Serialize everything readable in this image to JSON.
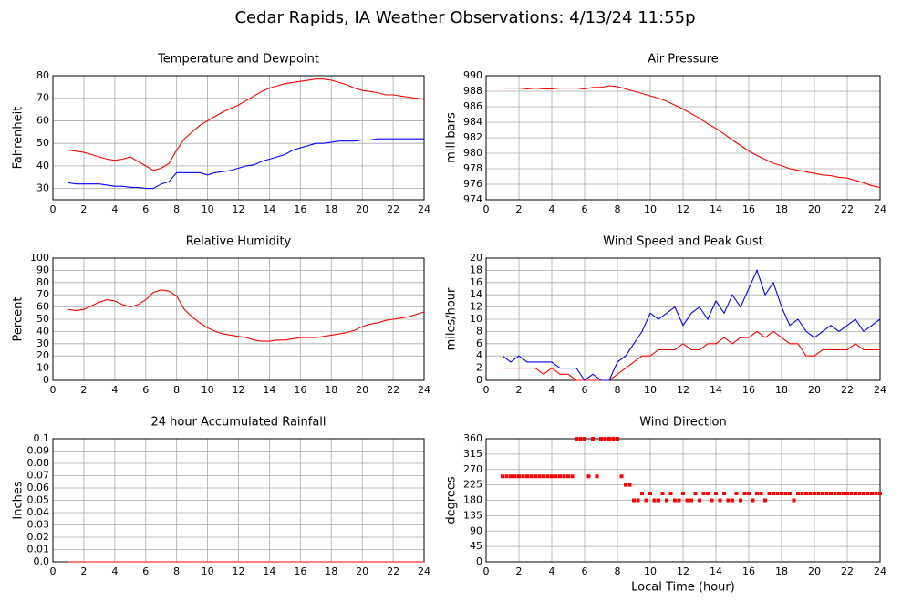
{
  "title": "Cedar Rapids, IA Weather Observations: 4/13/24 11:55p",
  "chart_data": [
    {
      "type": "line",
      "title": "Temperature and Dewpoint",
      "ylabel": "Fahrenheit",
      "x": [
        1,
        1.5,
        2,
        2.5,
        3,
        3.5,
        4,
        4.5,
        5,
        5.5,
        6,
        6.5,
        7,
        7.5,
        8,
        8.5,
        9,
        9.5,
        10,
        10.5,
        11,
        11.5,
        12,
        12.5,
        13,
        13.5,
        14,
        14.5,
        15,
        15.5,
        16,
        16.5,
        17,
        17.5,
        18,
        18.5,
        19,
        19.5,
        20,
        20.5,
        21,
        21.5,
        22,
        22.5,
        23,
        23.5,
        24
      ],
      "series": [
        {
          "color": "#ff0000",
          "values": [
            47,
            46.5,
            46,
            45,
            44,
            43,
            42.5,
            43,
            44,
            42,
            40,
            38,
            39,
            41,
            47,
            52,
            55,
            58,
            60,
            62,
            64,
            65.5,
            67,
            69,
            71,
            73,
            74.5,
            75.5,
            76.5,
            77,
            77.5,
            78,
            78.5,
            78.5,
            78,
            77,
            76,
            74.5,
            73.5,
            73,
            72.5,
            71.5,
            71.5,
            71,
            70.5,
            70,
            69.5
          ]
        },
        {
          "color": "#0000ff",
          "values": [
            32.5,
            32,
            32,
            32,
            32,
            31.5,
            31,
            31,
            30.5,
            30.5,
            30,
            30,
            32,
            33,
            37,
            37,
            37,
            37,
            36,
            37,
            37.5,
            38,
            39,
            40,
            40.5,
            42,
            43,
            44,
            45,
            47,
            48,
            49,
            50,
            50,
            50.5,
            51,
            51,
            51,
            51.5,
            51.5,
            52,
            52,
            52,
            52,
            52,
            52,
            52
          ]
        }
      ],
      "xlim": [
        0,
        24
      ],
      "xticks": [
        0,
        2,
        4,
        6,
        8,
        10,
        12,
        14,
        16,
        18,
        20,
        22,
        24
      ],
      "ylim": [
        25,
        80
      ],
      "yticks": [
        30,
        40,
        50,
        60,
        70,
        80
      ],
      "grid": true
    },
    {
      "type": "line",
      "title": "Air Pressure",
      "ylabel": "millibars",
      "x": [
        1,
        1.5,
        2,
        2.5,
        3,
        3.5,
        4,
        4.5,
        5,
        5.5,
        6,
        6.5,
        7,
        7.5,
        8,
        8.5,
        9,
        9.5,
        10,
        10.5,
        11,
        11.5,
        12,
        12.5,
        13,
        13.5,
        14,
        14.5,
        15,
        15.5,
        16,
        16.5,
        17,
        17.5,
        18,
        18.5,
        19,
        19.5,
        20,
        20.5,
        21,
        21.5,
        22,
        22.5,
        23,
        23.5,
        24
      ],
      "series": [
        {
          "color": "#ff0000",
          "values": [
            988.4,
            988.4,
            988.4,
            988.3,
            988.4,
            988.3,
            988.3,
            988.4,
            988.4,
            988.4,
            988.3,
            988.5,
            988.5,
            988.7,
            988.6,
            988.3,
            988.0,
            987.7,
            987.4,
            987.1,
            986.7,
            986.2,
            985.7,
            985.1,
            984.5,
            983.8,
            983.2,
            982.5,
            981.7,
            981.0,
            980.3,
            979.7,
            979.2,
            978.7,
            978.4,
            978.0,
            977.8,
            977.6,
            977.4,
            977.2,
            977.1,
            976.9,
            976.8,
            976.5,
            976.2,
            975.8,
            975.6
          ]
        }
      ],
      "xlim": [
        0,
        24
      ],
      "xticks": [
        0,
        2,
        4,
        6,
        8,
        10,
        12,
        14,
        16,
        18,
        20,
        22,
        24
      ],
      "ylim": [
        974,
        990
      ],
      "yticks": [
        974,
        976,
        978,
        980,
        982,
        984,
        986,
        988,
        990
      ],
      "grid": true
    },
    {
      "type": "line",
      "title": "Relative Humidity",
      "ylabel": "Percent",
      "x": [
        1,
        1.5,
        2,
        2.5,
        3,
        3.5,
        4,
        4.5,
        5,
        5.5,
        6,
        6.5,
        7,
        7.5,
        8,
        8.5,
        9,
        9.5,
        10,
        10.5,
        11,
        11.5,
        12,
        12.5,
        13,
        13.5,
        14,
        14.5,
        15,
        15.5,
        16,
        16.5,
        17,
        17.5,
        18,
        18.5,
        19,
        19.5,
        20,
        20.5,
        21,
        21.5,
        22,
        22.5,
        23,
        23.5,
        24
      ],
      "series": [
        {
          "color": "#ff0000",
          "values": [
            58,
            57,
            58,
            61,
            64,
            66,
            65,
            62,
            60,
            62,
            66,
            72,
            74,
            73,
            69,
            58,
            52,
            47,
            43,
            40,
            38,
            37,
            36,
            35,
            33,
            32,
            32,
            33,
            33,
            34,
            35,
            35,
            35,
            36,
            37,
            38,
            39,
            41,
            44,
            46,
            47,
            49,
            50,
            51,
            52,
            54,
            56
          ]
        }
      ],
      "xlim": [
        0,
        24
      ],
      "xticks": [
        0,
        2,
        4,
        6,
        8,
        10,
        12,
        14,
        16,
        18,
        20,
        22,
        24
      ],
      "ylim": [
        0,
        100
      ],
      "yticks": [
        0,
        10,
        20,
        30,
        40,
        50,
        60,
        70,
        80,
        90,
        100
      ],
      "grid": true
    },
    {
      "type": "line",
      "title": "Wind Speed and Peak Gust",
      "ylabel": "miles/hour",
      "x": [
        1,
        1.5,
        2,
        2.5,
        3,
        3.5,
        4,
        4.5,
        5,
        5.5,
        6,
        6.5,
        7,
        7.5,
        8,
        8.5,
        9,
        9.5,
        10,
        10.5,
        11,
        11.5,
        12,
        12.5,
        13,
        13.5,
        14,
        14.5,
        15,
        15.5,
        16,
        16.5,
        17,
        17.5,
        18,
        18.5,
        19,
        19.5,
        20,
        20.5,
        21,
        21.5,
        22,
        22.5,
        23,
        23.5,
        24
      ],
      "series": [
        {
          "color": "#ff0000",
          "values": [
            2,
            2,
            2,
            2,
            2,
            1,
            2,
            1,
            1,
            0,
            0,
            0,
            0,
            0,
            1,
            2,
            3,
            4,
            4,
            5,
            5,
            5,
            6,
            5,
            5,
            6,
            6,
            7,
            6,
            7,
            7,
            8,
            7,
            8,
            7,
            6,
            6,
            4,
            4,
            5,
            5,
            5,
            5,
            6,
            5,
            5,
            5
          ]
        },
        {
          "color": "#0000ff",
          "values": [
            4,
            3,
            4,
            3,
            3,
            3,
            3,
            2,
            2,
            2,
            0,
            1,
            0,
            0,
            3,
            4,
            6,
            8,
            11,
            10,
            11,
            12,
            9,
            11,
            12,
            10,
            13,
            11,
            14,
            12,
            15,
            18,
            14,
            16,
            12,
            9,
            10,
            8,
            7,
            8,
            9,
            8,
            9,
            10,
            8,
            9,
            10
          ]
        }
      ],
      "xlim": [
        0,
        24
      ],
      "xticks": [
        0,
        2,
        4,
        6,
        8,
        10,
        12,
        14,
        16,
        18,
        20,
        22,
        24
      ],
      "ylim": [
        0,
        20
      ],
      "yticks": [
        0,
        2,
        4,
        6,
        8,
        10,
        12,
        14,
        16,
        18,
        20
      ],
      "grid": true
    },
    {
      "type": "line",
      "title": "24 hour Accumulated Rainfall",
      "ylabel": "Inches",
      "x": [
        1,
        24
      ],
      "series": [
        {
          "color": "#ff0000",
          "values": [
            0,
            0
          ]
        }
      ],
      "xlim": [
        0,
        24
      ],
      "xticks": [
        0,
        2,
        4,
        6,
        8,
        10,
        12,
        14,
        16,
        18,
        20,
        22,
        24
      ],
      "ylim": [
        0,
        0.1
      ],
      "yticks": [
        {
          "value": 0,
          "label": "0.0"
        },
        0.01,
        0.02,
        0.03,
        0.04,
        0.05,
        0.06,
        0.07,
        0.08,
        0.09,
        0.1
      ],
      "grid": true
    },
    {
      "type": "scatter",
      "title": "Wind Direction",
      "ylabel": "degrees",
      "xlabel": "Local Time (hour)",
      "x": [
        1,
        1.25,
        1.5,
        1.75,
        2,
        2.25,
        2.5,
        2.75,
        3,
        3.25,
        3.5,
        3.75,
        4,
        4.25,
        4.5,
        4.75,
        5,
        5.25,
        5.5,
        5.75,
        6,
        6.25,
        6.5,
        6.75,
        7,
        7.25,
        7.5,
        7.75,
        8,
        8.25,
        8.5,
        8.75,
        9,
        9.25,
        9.5,
        9.75,
        10,
        10.25,
        10.5,
        10.75,
        11,
        11.25,
        11.5,
        11.75,
        12,
        12.25,
        12.5,
        12.75,
        13,
        13.25,
        13.5,
        13.75,
        14,
        14.25,
        14.5,
        14.75,
        15,
        15.25,
        15.5,
        15.75,
        16,
        16.25,
        16.5,
        16.75,
        17,
        17.25,
        17.5,
        17.75,
        18,
        18.25,
        18.5,
        18.75,
        19,
        19.25,
        19.5,
        19.75,
        20,
        20.25,
        20.5,
        20.75,
        21,
        21.25,
        21.5,
        21.75,
        22,
        22.25,
        22.5,
        22.75,
        23,
        23.25,
        23.5,
        23.75,
        24
      ],
      "series": [
        {
          "color": "#ff0000",
          "values": [
            250,
            250,
            250,
            250,
            250,
            250,
            250,
            250,
            250,
            250,
            250,
            250,
            250,
            250,
            250,
            250,
            250,
            250,
            360,
            360,
            360,
            250,
            360,
            250,
            360,
            360,
            360,
            360,
            360,
            250,
            225,
            225,
            180,
            180,
            200,
            180,
            200,
            180,
            180,
            200,
            180,
            200,
            180,
            180,
            200,
            180,
            180,
            200,
            180,
            200,
            200,
            180,
            200,
            180,
            200,
            180,
            180,
            200,
            180,
            200,
            200,
            180,
            200,
            200,
            180,
            200,
            200,
            200,
            200,
            200,
            200,
            180,
            200,
            200,
            200,
            200,
            200,
            200,
            200,
            200,
            200,
            200,
            200,
            200,
            200,
            200,
            200,
            200,
            200,
            200,
            200,
            200,
            200
          ]
        }
      ],
      "xlim": [
        0,
        24
      ],
      "xticks": [
        0,
        2,
        4,
        6,
        8,
        10,
        12,
        14,
        16,
        18,
        20,
        22,
        24
      ],
      "ylim": [
        0,
        360
      ],
      "yticks": [
        0,
        45,
        90,
        135,
        180,
        225,
        270,
        315,
        360
      ],
      "grid": true
    }
  ]
}
